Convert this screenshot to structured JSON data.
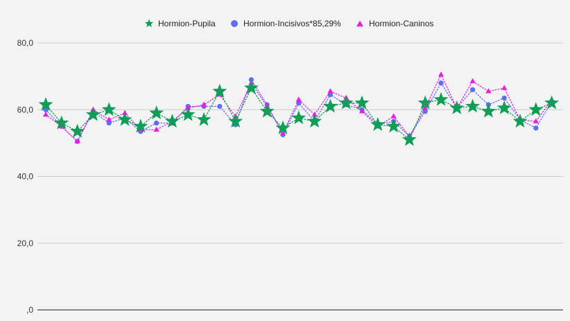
{
  "chart_data": {
    "type": "line",
    "title": "",
    "xlabel": "",
    "ylabel": "",
    "ylim": [
      0,
      80
    ],
    "y_ticks": [
      0,
      20,
      40,
      60,
      80
    ],
    "y_tick_labels": [
      ",0",
      "20,0",
      "40,0",
      "60,0",
      "80,0"
    ],
    "grid": "horizontal",
    "legend_position": "top",
    "series": [
      {
        "name": "Hormion-Pupila",
        "marker": "star",
        "line_style": "dotted",
        "color": "#0f9d58",
        "values": [
          61.5,
          56,
          53.5,
          58.5,
          60,
          57,
          55,
          59,
          56.5,
          58.5,
          57,
          65.5,
          56.5,
          66.5,
          59.5,
          54.5,
          57.5,
          56.5,
          61,
          62,
          62,
          55.5,
          55,
          51,
          62,
          63,
          60.5,
          61,
          59.5,
          60.5,
          56.5,
          60,
          62
        ]
      },
      {
        "name": "Hormion-Incisivos*85,29%",
        "marker": "circle",
        "line_style": "dotted",
        "color": "#5b6ff0",
        "values": [
          60,
          55,
          50.5,
          59.5,
          56,
          57.5,
          53.5,
          56,
          56,
          61,
          61,
          61,
          55.5,
          69,
          61.5,
          52.5,
          62,
          56.5,
          64.5,
          61.5,
          60,
          55.5,
          56.5,
          52,
          59.5,
          68,
          60.5,
          66,
          61.5,
          63.5,
          57,
          54.5,
          62.5
        ]
      },
      {
        "name": "Hormion-Caninos",
        "marker": "triangle",
        "line_style": "dotted",
        "color": "#e91ee6",
        "values": [
          58.5,
          55,
          50.5,
          60,
          57,
          59,
          54,
          54,
          56.5,
          60.5,
          61.5,
          64.5,
          58,
          68,
          61,
          53,
          63,
          58.5,
          65.5,
          63.5,
          59.5,
          55,
          58,
          52,
          60.5,
          70.5,
          60.5,
          68.5,
          65.5,
          66.5,
          57,
          56.5,
          63
        ]
      }
    ]
  }
}
